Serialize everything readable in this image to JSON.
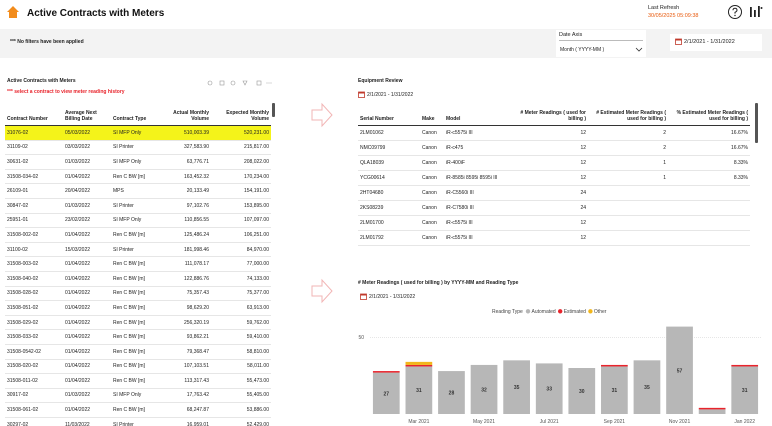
{
  "header": {
    "title": "Active Contracts with Meters",
    "last_refresh_label": "Last Refresh",
    "last_refresh_value": "30/05/2025 05:09:38"
  },
  "filters": {
    "note": "*** No filters have been applied",
    "date_axis_label": "Date Axis",
    "date_axis_value": "Month ( YYYY-MM )",
    "date_range": "2/1/2021 - 1/31/2022"
  },
  "contracts": {
    "title": "Active Contracts with Meters",
    "instruction": "*** select a contract to view meter reading history",
    "columns": [
      "Contract Number",
      "Average Next Billing Date",
      "Contract Type",
      "Actual Monthly Volume",
      "Expected Monthly Volume"
    ],
    "rows": [
      [
        "31076-02",
        "05/03/2022",
        "SI MFP Only",
        "510,003.39",
        "520,231.00"
      ],
      [
        "31109-02",
        "03/03/2022",
        "SI Printer",
        "327,583.90",
        "215,817.00"
      ],
      [
        "30631-02",
        "01/03/2022",
        "SI MFP Only",
        "63,776.71",
        "208,022.00"
      ],
      [
        "31508-034-02",
        "01/04/2022",
        "Ren C BW [m]",
        "163,452.32",
        "170,234.00"
      ],
      [
        "26109-01",
        "20/04/2022",
        "MPS",
        "20,133.49",
        "154,191.00"
      ],
      [
        "30847-02",
        "01/03/2022",
        "SI Printer",
        "97,102.76",
        "153,895.00"
      ],
      [
        "25951-01",
        "23/02/2022",
        "SI MFP Only",
        "110,856.55",
        "107,097.00"
      ],
      [
        "31508-002-02",
        "01/04/2022",
        "Ren C BW [m]",
        "125,486.24",
        "106,251.00"
      ],
      [
        "31100-02",
        "15/03/2022",
        "SI Printer",
        "181,998.46",
        "84,970.00"
      ],
      [
        "31508-003-02",
        "01/04/2022",
        "Ren C BW [m]",
        "111,078.17",
        "77,000.00"
      ],
      [
        "31508-040-02",
        "01/04/2022",
        "Ren C BW [m]",
        "122,886.76",
        "74,133.00"
      ],
      [
        "31508-028-02",
        "01/04/2022",
        "Ren C BW [m]",
        "75,357.43",
        "75,377.00"
      ],
      [
        "31508-051-02",
        "01/04/2022",
        "Ren C BW [m]",
        "98,629.20",
        "63,913.00"
      ],
      [
        "31508-029-02",
        "01/04/2022",
        "Ren C BW [m]",
        "256,320.19",
        "59,762.00"
      ],
      [
        "31508-033-02",
        "01/04/2022",
        "Ren C BW [m]",
        "93,862.21",
        "59,410.00"
      ],
      [
        "31508-0542-02",
        "01/04/2022",
        "Ren C BW [m]",
        "79,368.47",
        "58,810.00"
      ],
      [
        "31508-020-02",
        "01/04/2022",
        "Ren C BW [m]",
        "107,103.51",
        "58,011.00"
      ],
      [
        "31508-011-02",
        "01/04/2022",
        "Ren C BW [m]",
        "113,317.43",
        "55,473.00"
      ],
      [
        "30917-02",
        "01/03/2022",
        "SI MFP Only",
        "17,763.42",
        "55,405.00"
      ],
      [
        "31508-061-02",
        "01/04/2022",
        "Ren C BW [m]",
        "68,247.87",
        "53,886.00"
      ],
      [
        "30297-02",
        "11/03/2022",
        "SI Printer",
        "16,959.01",
        "52,429.00"
      ]
    ]
  },
  "equipment": {
    "title": "Equipment Review",
    "date_range": "2/1/2021 - 1/31/2022",
    "columns": [
      "Serial Number",
      "Make",
      "Model",
      "# Meter Readings ( used for billing )",
      "# Estimated Meter Readings ( used for billing )",
      "% Estimated Meter Readings ( used for billing )"
    ],
    "rows": [
      [
        "2LM01062",
        "Canon",
        "iR-c5575i III",
        "12",
        "2",
        "16.67%"
      ],
      [
        "NMC09799",
        "Canon",
        "iR-c475",
        "12",
        "2",
        "16.67%"
      ],
      [
        "QLA18039",
        "Canon",
        "iR-400iF",
        "12",
        "1",
        "8.33%"
      ],
      [
        "YCG00614",
        "Canon",
        "iR-8585i 8595i 8595i III",
        "12",
        "1",
        "8.33%"
      ],
      [
        "2HT04680",
        "Canon",
        "iR-C5560i III",
        "24",
        "",
        ""
      ],
      [
        "2KS08239",
        "Canon",
        "iR-C7580i III",
        "24",
        "",
        ""
      ],
      [
        "2LM01700",
        "Canon",
        "iR-c5575i III",
        "12",
        "",
        ""
      ],
      [
        "2LM01792",
        "Canon",
        "iR-c5575i III",
        "12",
        "",
        ""
      ]
    ]
  },
  "chart_data": {
    "type": "bar",
    "stacked": true,
    "title": "# Meter Readings ( used for billing ) by YYYY-MM and Reading Type",
    "date_range": "2/1/2021 - 1/31/2022",
    "legend_title": "Reading Type",
    "categories": [
      null,
      "Mar 2021",
      null,
      "May 2021",
      null,
      "Jul 2021",
      null,
      "Sep 2021",
      null,
      "Nov 2021",
      null,
      "Jan 2022"
    ],
    "series": [
      {
        "name": "Automated",
        "color": "#b7b7b7",
        "values": [
          27,
          31,
          28,
          32,
          35,
          33,
          30,
          31,
          35,
          57,
          3,
          31
        ]
      },
      {
        "name": "Estimated",
        "color": "#e8242c",
        "values": [
          1,
          1,
          0,
          0,
          0,
          0,
          0,
          1,
          0,
          0,
          1,
          1
        ]
      },
      {
        "name": "Other",
        "color": "#f2b61b",
        "values": [
          0,
          2,
          0,
          0,
          0,
          0,
          0,
          0,
          0,
          0,
          0,
          0
        ]
      }
    ],
    "ylim": [
      0,
      60
    ],
    "yticks": [
      50
    ],
    "grid": true
  }
}
